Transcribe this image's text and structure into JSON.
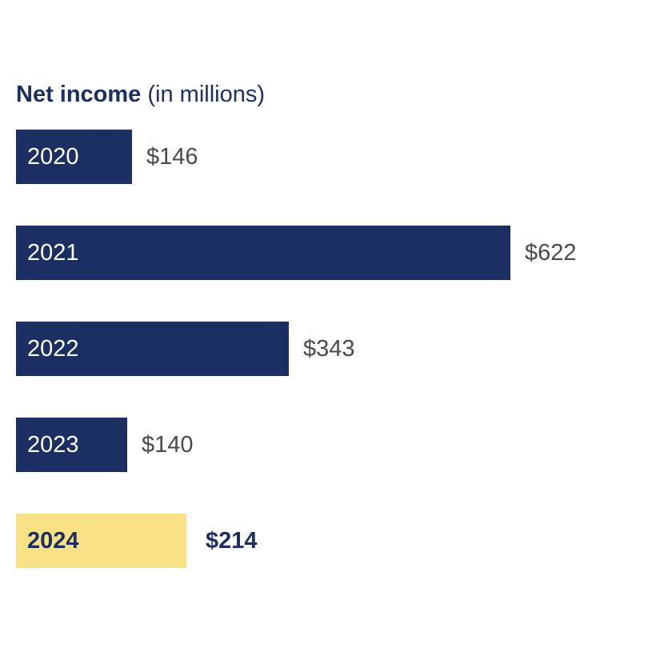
{
  "chart_data": {
    "type": "bar",
    "orientation": "horizontal",
    "title_bold": "Net income",
    "title_rest": "(in millions)",
    "categories": [
      "2020",
      "2021",
      "2022",
      "2023",
      "2024"
    ],
    "values": [
      146,
      622,
      343,
      140,
      214
    ],
    "value_labels": [
      "$146",
      "$622",
      "$343",
      "$140",
      "$214"
    ],
    "highlight_index": 4,
    "grid": false,
    "legend": "none"
  },
  "colors": {
    "bar": "#1b2f63",
    "highlight_bar": "#f9e286",
    "value_text": "#4a4a4a",
    "highlight_text": "#1b2f63"
  }
}
